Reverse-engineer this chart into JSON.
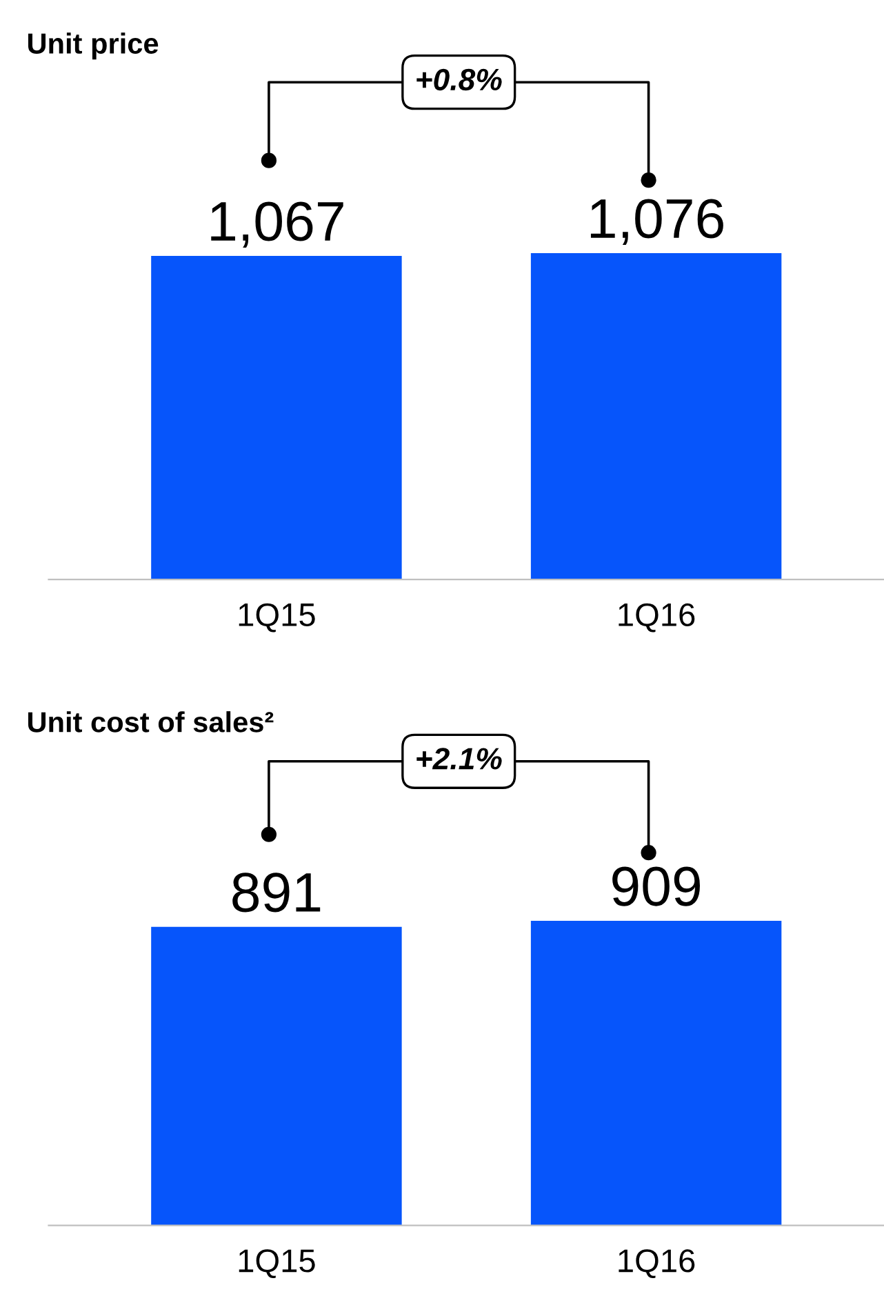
{
  "chart_data": [
    {
      "type": "bar",
      "title": "Unit price",
      "categories": [
        "1Q15",
        "1Q16"
      ],
      "values": [
        1067,
        1076
      ],
      "value_labels": [
        "1,067",
        "1,076"
      ],
      "color": "#0655fb",
      "tick_labels": "x",
      "grid": false,
      "legend": false,
      "annotations": [
        "+0.8%"
      ]
    },
    {
      "type": "bar",
      "title": "Unit cost of sales²",
      "categories": [
        "1Q15",
        "1Q16"
      ],
      "values": [
        891,
        909
      ],
      "value_labels": [
        "891",
        "909"
      ],
      "color": "#0655fb",
      "tick_labels": "x",
      "grid": false,
      "legend": false,
      "annotations": [
        "+2.1%"
      ]
    }
  ]
}
